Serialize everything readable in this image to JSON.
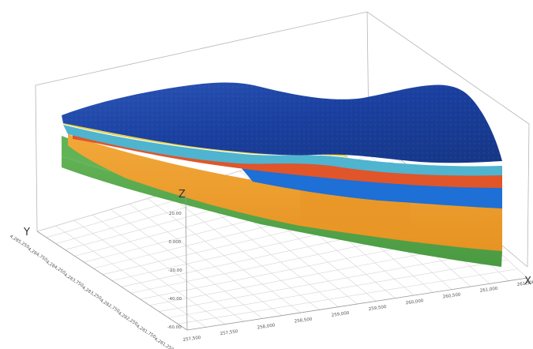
{
  "axes": {
    "x_letter": "X",
    "y_letter": "Y",
    "z_letter": "Z"
  },
  "x_ticks": [
    "257,500",
    "257,550",
    "258,000",
    "258,500",
    "259,000",
    "259,500",
    "260,000",
    "260,500",
    "261,000",
    "261,500"
  ],
  "y_ticks": [
    "4,285,250",
    "4,284,750",
    "4,284,250",
    "4,283,750",
    "4,283,250",
    "4,282,750",
    "4,282,250",
    "4,281,750",
    "4,281,250"
  ],
  "z_ticks": [
    "20.00",
    "0.000",
    "-20.00",
    "-40.00",
    "-60.00"
  ],
  "layers": [
    {
      "name": "surface",
      "color": "#1a3f9e"
    },
    {
      "name": "thin-yellow",
      "color": "#e8d23a"
    },
    {
      "name": "cyan",
      "color": "#4fb4cf"
    },
    {
      "name": "orange-red",
      "color": "#e0552a"
    },
    {
      "name": "blue",
      "color": "#1e6fd6"
    },
    {
      "name": "orange",
      "color": "#f0a02a"
    },
    {
      "name": "green",
      "color": "#5aad4e"
    }
  ]
}
